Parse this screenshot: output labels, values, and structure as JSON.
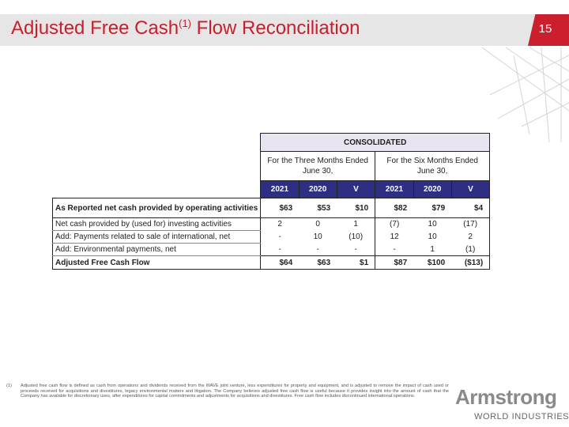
{
  "header": {
    "title_pre": "Adjusted Free Cash",
    "title_sup": "(1)",
    "title_post": " Flow Reconciliation",
    "page_number": "15",
    "accent_color": "#c81e2e"
  },
  "table": {
    "group_header": "CONSOLIDATED",
    "period_headers": [
      "For the Three Months Ended June 30,",
      "For the Six Months Ended June 30,"
    ],
    "year_headers": [
      "2021",
      "2020",
      "V",
      "2021",
      "2020",
      "V"
    ],
    "rows": [
      {
        "label": "As Reported net cash provided by operating activities",
        "values": [
          "$63",
          "$53",
          "$10",
          "$82",
          "$79",
          "$4"
        ]
      },
      {
        "label": "Net cash provided by (used for) investing activities",
        "values": [
          "2",
          "0",
          "1",
          "(7)",
          "10",
          "(17)"
        ]
      },
      {
        "label": "Add: Payments related to sale of international, net",
        "values": [
          "-",
          "10",
          "(10)",
          "12",
          "10",
          "2"
        ]
      },
      {
        "label": "Add: Environmental payments, net",
        "values": [
          "-",
          "-",
          "-",
          "-",
          "1",
          "(1)"
        ]
      },
      {
        "label": "Adjusted Free Cash Flow",
        "values": [
          "$64",
          "$63",
          "$1",
          "$87",
          "$100",
          "($13)"
        ]
      }
    ]
  },
  "footnote": {
    "mark": "(1)",
    "text": "Adjusted free cash flow is defined as cash from operations and dividends received from the WAVE joint venture, less expenditures for property and equipment, and is adjusted to remove the impact of cash used or proceeds received for acquisitions and divestitures, legacy environmental matters and litigation. The Company believes adjusted free cash flow is useful because it provides insight into the amount of cash that the Company has available for discretionary uses, after expenditures for capital commitments and adjustments for acquisitions and divestitures.  Free cash flow includes discontinued international operations."
  },
  "logo": {
    "word": "Armstrong",
    "sub": "WORLD INDUSTRIES"
  }
}
